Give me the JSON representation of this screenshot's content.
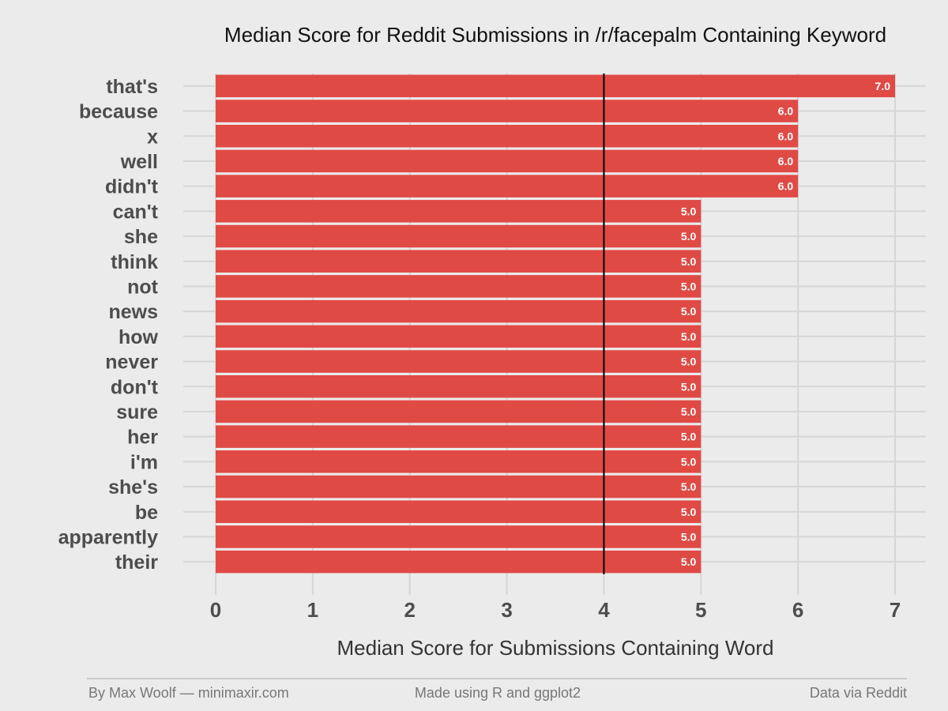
{
  "chart_data": {
    "type": "bar",
    "orientation": "horizontal",
    "title": "Median Score for Reddit Submissions in /r/facepalm Containing Keyword",
    "xlabel": "Median Score for Submissions Containing Word",
    "ylabel": "",
    "categories": [
      "that's",
      "because",
      "x",
      "well",
      "didn't",
      "can't",
      "she",
      "think",
      "not",
      "news",
      "how",
      "never",
      "don't",
      "sure",
      "her",
      "i'm",
      "she's",
      "be",
      "apparently",
      "their"
    ],
    "values": [
      7,
      6,
      6,
      6,
      6,
      5,
      5,
      5,
      5,
      5,
      5,
      5,
      5,
      5,
      5,
      5,
      5,
      5,
      5,
      5
    ],
    "value_labels": [
      "7.0",
      "6.0",
      "6.0",
      "6.0",
      "6.0",
      "5.0",
      "5.0",
      "5.0",
      "5.0",
      "5.0",
      "5.0",
      "5.0",
      "5.0",
      "5.0",
      "5.0",
      "5.0",
      "5.0",
      "5.0",
      "5.0",
      "5.0"
    ],
    "xlim": [
      0,
      7
    ],
    "xticks": [
      "0",
      "1",
      "2",
      "3",
      "4",
      "5",
      "6",
      "7"
    ],
    "reference_line": 4,
    "grid": true,
    "colors": {
      "bar": "#e04a45",
      "reference": "#000000",
      "background": "#ebebeb",
      "grid": "#d6d6d6"
    }
  },
  "footer": {
    "left": "By Max Woolf — minimaxir.com",
    "center": "Made using R and ggplot2",
    "right": "Data via Reddit"
  }
}
